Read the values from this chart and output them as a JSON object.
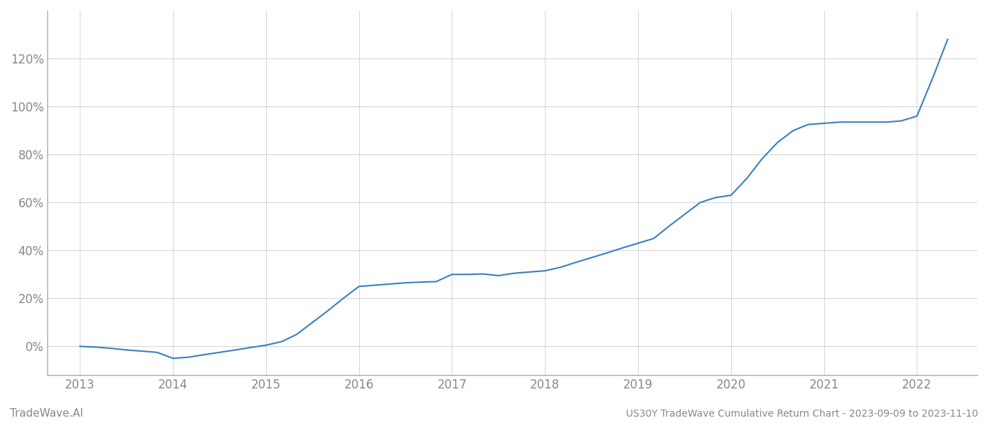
{
  "title": "US30Y TradeWave Cumulative Return Chart - 2023-09-09 to 2023-11-10",
  "watermark": "TradeWave.AI",
  "line_color": "#3a7ebf",
  "background_color": "#ffffff",
  "grid_color": "#cccccc",
  "x_values": [
    2013.0,
    2013.17,
    2013.33,
    2013.5,
    2013.67,
    2013.83,
    2014.0,
    2014.17,
    2014.33,
    2014.5,
    2014.67,
    2014.83,
    2015.0,
    2015.17,
    2015.33,
    2015.5,
    2015.67,
    2015.83,
    2016.0,
    2016.17,
    2016.33,
    2016.5,
    2016.67,
    2016.83,
    2017.0,
    2017.17,
    2017.33,
    2017.5,
    2017.67,
    2017.83,
    2018.0,
    2018.17,
    2018.33,
    2018.5,
    2018.67,
    2018.83,
    2019.0,
    2019.17,
    2019.33,
    2019.5,
    2019.67,
    2019.83,
    2020.0,
    2020.17,
    2020.33,
    2020.5,
    2020.67,
    2020.83,
    2021.0,
    2021.17,
    2021.33,
    2021.5,
    2021.67,
    2021.83,
    2022.0,
    2022.17,
    2022.33
  ],
  "y_values": [
    0.0,
    -0.3,
    -0.8,
    -1.5,
    -2.0,
    -2.5,
    -5.0,
    -4.5,
    -3.5,
    -2.5,
    -1.5,
    -0.5,
    0.5,
    2.0,
    5.0,
    10.0,
    15.0,
    20.0,
    25.0,
    25.5,
    26.0,
    26.5,
    26.8,
    27.0,
    30.0,
    30.0,
    30.2,
    29.5,
    30.5,
    31.0,
    31.5,
    33.0,
    35.0,
    37.0,
    39.0,
    41.0,
    43.0,
    45.0,
    50.0,
    55.0,
    60.0,
    62.0,
    63.0,
    70.0,
    78.0,
    85.0,
    90.0,
    92.5,
    93.0,
    93.5,
    93.5,
    93.5,
    93.5,
    94.0,
    96.0,
    112.0,
    128.0
  ],
  "xlim": [
    2012.65,
    2022.65
  ],
  "ylim": [
    -12,
    140
  ],
  "yticks": [
    0,
    20,
    40,
    60,
    80,
    100,
    120
  ],
  "ytick_labels": [
    "0%",
    "20%",
    "40%",
    "60%",
    "80%",
    "100%",
    "120%"
  ],
  "xticks": [
    2013,
    2014,
    2015,
    2016,
    2017,
    2018,
    2019,
    2020,
    2021,
    2022
  ],
  "xtick_labels": [
    "2013",
    "2014",
    "2015",
    "2016",
    "2017",
    "2018",
    "2019",
    "2020",
    "2021",
    "2022"
  ],
  "line_width": 1.5,
  "title_fontsize": 10,
  "tick_fontsize": 12,
  "watermark_fontsize": 11,
  "title_color": "#888888",
  "tick_color": "#888888",
  "watermark_color": "#888888"
}
